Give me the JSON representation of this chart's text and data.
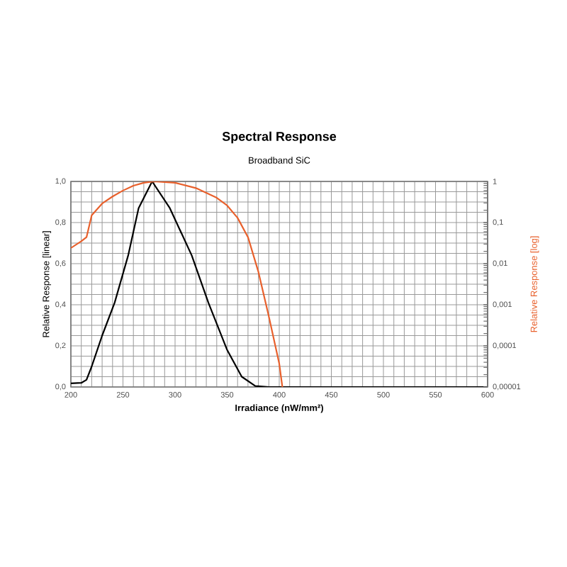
{
  "chart_data": {
    "type": "line",
    "title": "Spectral Response",
    "subtitle": "Broadband SiC",
    "xlabel": "Irradiance (nW/mm²)",
    "ylabel": "Relative Response [linear]",
    "y2label": "Relative Response [log]",
    "xlim": [
      200,
      600
    ],
    "xticks": [
      200,
      250,
      300,
      350,
      400,
      450,
      500,
      550,
      600
    ],
    "ylim": [
      0,
      1
    ],
    "yticks": [
      {
        "value": 0,
        "label": "0,0"
      },
      {
        "value": 0.2,
        "label": "0,2"
      },
      {
        "value": 0.4,
        "label": "0,4"
      },
      {
        "value": 0.6,
        "label": "0,6"
      },
      {
        "value": 0.8,
        "label": "0,8"
      },
      {
        "value": 1,
        "label": "1,0"
      }
    ],
    "y2lim": [
      1e-05,
      1
    ],
    "y2ticks": [
      {
        "value": 1e-05,
        "label": "0,00001"
      },
      {
        "value": 0.0001,
        "label": "0,0001"
      },
      {
        "value": 0.001,
        "label": "0,001"
      },
      {
        "value": 0.01,
        "label": "0,01"
      },
      {
        "value": 0.1,
        "label": "0,1"
      },
      1
    ],
    "log": "y2",
    "grid": true,
    "series": [
      {
        "color": "#000000",
        "x": [
          200,
          210,
          215,
          220,
          230,
          242,
          255,
          265,
          278,
          295,
          316,
          332,
          350,
          364,
          377,
          390,
          450,
          500,
          550,
          600
        ],
        "values": [
          0.018,
          0.02,
          0.035,
          0.1,
          0.25,
          0.41,
          0.64,
          0.87,
          1,
          0.87,
          0.64,
          0.41,
          0.18,
          0.05,
          0.005,
          0,
          0,
          0,
          0,
          0
        ]
      },
      {
        "color": "#e8602c",
        "axis": "y2",
        "x": [
          200,
          210,
          215,
          220,
          230,
          240,
          250,
          260,
          270,
          280,
          300,
          320,
          340,
          350,
          360,
          370,
          380,
          390,
          400,
          403
        ],
        "values": [
          0.024,
          0.035,
          0.044,
          0.15,
          0.29,
          0.43,
          0.6,
          0.79,
          0.93,
          1,
          0.93,
          0.69,
          0.4,
          0.26,
          0.13,
          0.044,
          0.0063,
          0.00052,
          3.7e-05,
          1e-05
        ]
      }
    ]
  }
}
